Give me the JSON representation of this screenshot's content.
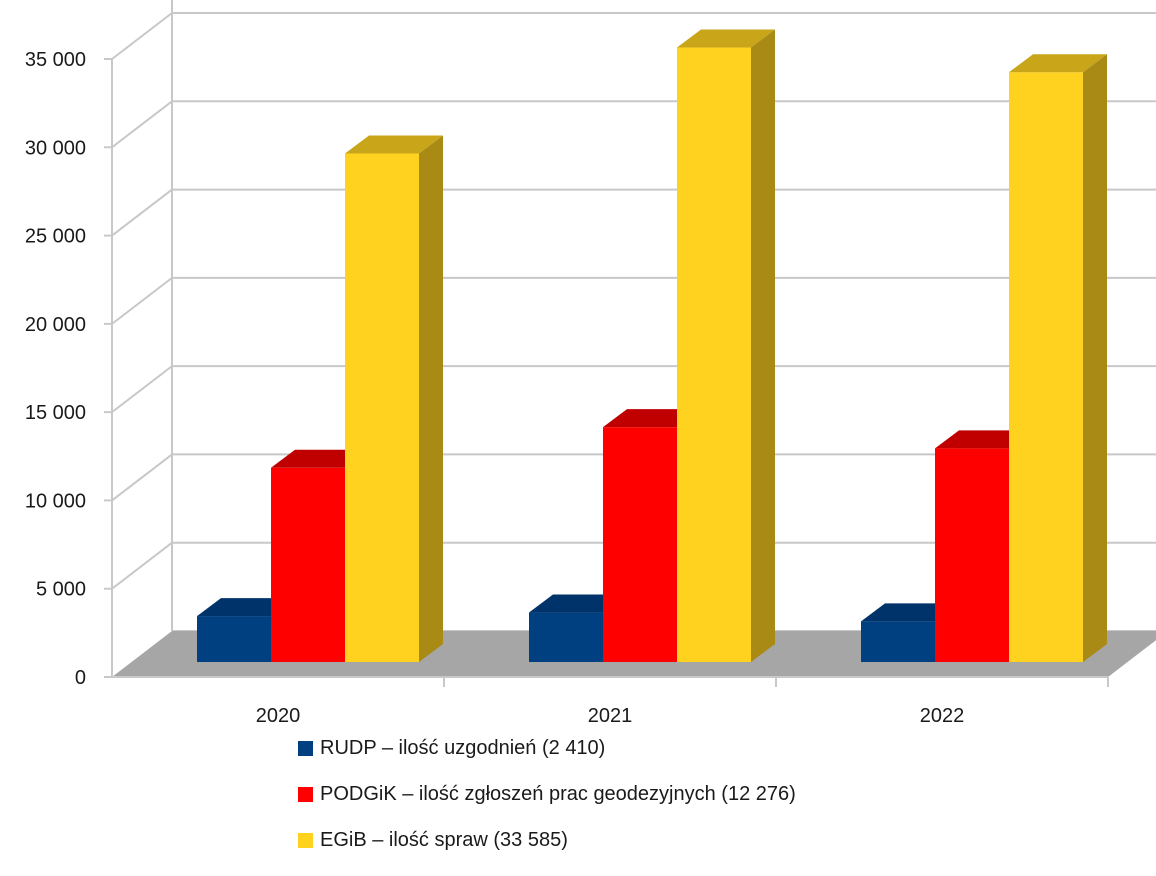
{
  "chart_data": {
    "type": "bar",
    "categories": [
      "2020",
      "2021",
      "2022"
    ],
    "series": [
      {
        "name": "RUDP – ilość uzgodnień (2 410)",
        "values": [
          2600,
          2800,
          2300
        ],
        "color": "#004080",
        "top_color": "#00336a",
        "side_color": "#002e5e"
      },
      {
        "name": "PODGiK – ilość zgłoszeń prac geodezyjnych (12 276)",
        "values": [
          11000,
          13300,
          12100
        ],
        "color": "#ff0000",
        "top_color": "#c00000",
        "side_color": "#b00000"
      },
      {
        "name": "EGiB – ilość spraw (33 585)",
        "values": [
          28800,
          34800,
          33400
        ],
        "color": "#ffd21f",
        "top_color": "#c9a51a",
        "side_color": "#a88a15"
      }
    ],
    "y_ticks": [
      "0",
      "5 000",
      "10 000",
      "15 000",
      "20 000",
      "25 000",
      "30 000",
      "35 000"
    ],
    "ylim": [
      0,
      35000
    ],
    "grid": true,
    "legend_position": "bottom",
    "floor_color": "#a6a6a6",
    "grid_color": "#c8c8c8"
  }
}
